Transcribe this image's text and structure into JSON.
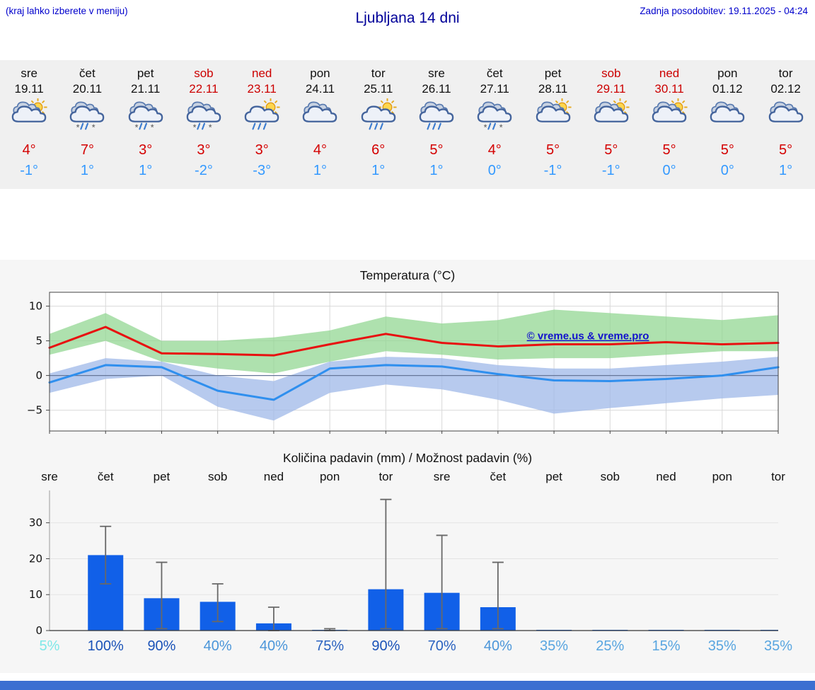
{
  "header": {
    "hint": "(kraj lahko izberete v meniju)",
    "title": "Ljubljana 14 dni",
    "last_update": "Zadnja posodobitev: 19.11.2025 - 04:24"
  },
  "colors": {
    "link_blue": "#0000cc",
    "title_blue": "#000099",
    "weekend_red": "#cc0000",
    "temp_high_red": "#d40000",
    "temp_low_blue": "#3399ff",
    "bar_blue": "#1160e8",
    "watermark_blue": "#1111cc",
    "footer_blue": "#3b6fd1"
  },
  "forecast": {
    "days": [
      {
        "day": "sre",
        "date": "19.11",
        "weekend": false,
        "icon": "sun-cloud",
        "high": "4°",
        "low": "-1°"
      },
      {
        "day": "čet",
        "date": "20.11",
        "weekend": false,
        "icon": "rain-snow",
        "high": "7°",
        "low": "1°"
      },
      {
        "day": "pet",
        "date": "21.11",
        "weekend": false,
        "icon": "rain-snow",
        "high": "3°",
        "low": "1°"
      },
      {
        "day": "sob",
        "date": "22.11",
        "weekend": true,
        "icon": "rain-snow",
        "high": "3°",
        "low": "-2°"
      },
      {
        "day": "ned",
        "date": "23.11",
        "weekend": true,
        "icon": "sun-rain",
        "high": "3°",
        "low": "-3°"
      },
      {
        "day": "pon",
        "date": "24.11",
        "weekend": false,
        "icon": "cloudy",
        "high": "4°",
        "low": "1°"
      },
      {
        "day": "tor",
        "date": "25.11",
        "weekend": false,
        "icon": "sun-rain",
        "high": "6°",
        "low": "1°"
      },
      {
        "day": "sre",
        "date": "26.11",
        "weekend": false,
        "icon": "rain",
        "high": "5°",
        "low": "1°"
      },
      {
        "day": "čet",
        "date": "27.11",
        "weekend": false,
        "icon": "rain-snow",
        "high": "4°",
        "low": "0°"
      },
      {
        "day": "pet",
        "date": "28.11",
        "weekend": false,
        "icon": "sun-cloud",
        "high": "5°",
        "low": "-1°"
      },
      {
        "day": "sob",
        "date": "29.11",
        "weekend": true,
        "icon": "sun-cloud",
        "high": "5°",
        "low": "-1°"
      },
      {
        "day": "ned",
        "date": "30.11",
        "weekend": true,
        "icon": "sun-cloud",
        "high": "5°",
        "low": "0°"
      },
      {
        "day": "pon",
        "date": "01.12",
        "weekend": false,
        "icon": "cloudy",
        "high": "5°",
        "low": "0°"
      },
      {
        "day": "tor",
        "date": "02.12",
        "weekend": false,
        "icon": "cloudy",
        "high": "5°",
        "low": "1°"
      }
    ]
  },
  "chart_data": [
    {
      "type": "line",
      "title": "Temperatura (°C)",
      "categories": [
        "sre",
        "čet",
        "pet",
        "sob",
        "ned",
        "pon",
        "tor",
        "sre",
        "čet",
        "pet",
        "sob",
        "ned",
        "pon",
        "tor"
      ],
      "ylim": [
        -8,
        12
      ],
      "yticks": [
        -5,
        0,
        5,
        10
      ],
      "grid": true,
      "watermark": "© vreme.us & vreme.pro",
      "series": [
        {
          "name": "max-temperature",
          "color": "#e81010",
          "values": [
            4,
            7,
            3.2,
            3.1,
            2.9,
            4.5,
            6,
            4.7,
            4.2,
            4.5,
            4.5,
            4.8,
            4.5,
            4.7
          ]
        },
        {
          "name": "min-temperature",
          "color": "#2f8fee",
          "values": [
            -1,
            1.5,
            1.2,
            -2.2,
            -3.5,
            1,
            1.5,
            1.3,
            0.2,
            -0.7,
            -0.8,
            -0.5,
            0,
            1.2
          ]
        }
      ],
      "bands": [
        {
          "name": "max-range",
          "color": "#8fd68f",
          "opacity": 0.72,
          "upper": [
            6,
            9,
            5,
            5,
            5.5,
            6.5,
            8.5,
            7.5,
            8,
            9.5,
            9,
            8.5,
            8,
            8.7
          ],
          "lower": [
            3,
            5,
            2,
            1,
            0.3,
            2,
            3.5,
            3,
            2.3,
            2.5,
            2.5,
            3,
            3.5,
            3.5
          ]
        },
        {
          "name": "min-range",
          "color": "#9fb8e8",
          "opacity": 0.75,
          "upper": [
            0.3,
            2.5,
            2,
            0,
            -0.8,
            2,
            2.7,
            2.5,
            1.5,
            1,
            1,
            1.5,
            2,
            2.7
          ],
          "lower": [
            -2.5,
            -0.5,
            0,
            -4.5,
            -6.5,
            -2.5,
            -1.3,
            -2,
            -3.5,
            -5.5,
            -4.7,
            -4,
            -3.3,
            -2.8
          ]
        }
      ]
    },
    {
      "type": "bar",
      "title": "Količina padavin (mm) / Možnost padavin (%)",
      "categories": [
        "sre",
        "čet",
        "pet",
        "sob",
        "ned",
        "pon",
        "tor",
        "sre",
        "čet",
        "pet",
        "sob",
        "ned",
        "pon",
        "tor"
      ],
      "ylim": [
        0,
        39
      ],
      "yticks": [
        0,
        10,
        20,
        30
      ],
      "values": [
        0,
        21,
        9,
        8,
        2,
        0.2,
        11.5,
        10.5,
        6.5,
        0.2,
        0.2,
        0.2,
        0.2,
        0.2
      ],
      "error_low": [
        0,
        13,
        0.5,
        2.5,
        0,
        0,
        0.5,
        0.5,
        0.5,
        0,
        0,
        0,
        0,
        0
      ],
      "error_high": [
        0,
        29,
        19,
        13,
        6.5,
        0.5,
        36.5,
        26.5,
        19,
        0,
        0,
        0,
        0,
        0
      ],
      "probabilities": [
        {
          "label": "5%",
          "color": "#7fe8e8"
        },
        {
          "label": "100%",
          "color": "#1a52b8"
        },
        {
          "label": "90%",
          "color": "#1a52b8"
        },
        {
          "label": "40%",
          "color": "#4a95d9"
        },
        {
          "label": "40%",
          "color": "#4a95d9"
        },
        {
          "label": "75%",
          "color": "#2a62c0"
        },
        {
          "label": "90%",
          "color": "#1a52b8"
        },
        {
          "label": "70%",
          "color": "#2a62c0"
        },
        {
          "label": "40%",
          "color": "#4a95d9"
        },
        {
          "label": "35%",
          "color": "#58a5e0"
        },
        {
          "label": "25%",
          "color": "#58a5e0"
        },
        {
          "label": "15%",
          "color": "#58a5e0"
        },
        {
          "label": "35%",
          "color": "#58a5e0"
        },
        {
          "label": "35%",
          "color": "#58a5e0"
        }
      ]
    }
  ]
}
